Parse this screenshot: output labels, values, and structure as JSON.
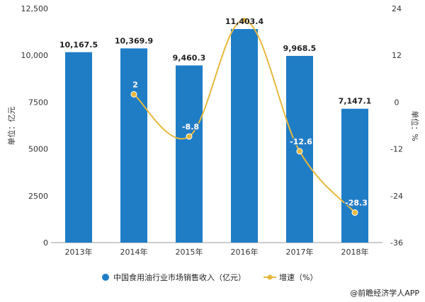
{
  "chart_data": {
    "type": "bar",
    "categories": [
      "2013年",
      "2014年",
      "2015年",
      "2016年",
      "2017年",
      "2018年"
    ],
    "series": [
      {
        "name": "中国食用油行业市场销售收入（亿元）",
        "type": "bar",
        "axis": "left",
        "values": [
          10167.5,
          10369.9,
          9460.3,
          11403.4,
          9968.5,
          7147.1
        ],
        "labels": [
          "10,167.5",
          "10,369.9",
          "9,460.3",
          "11,403.4",
          "9,968.5",
          "7,147.1"
        ],
        "color": "#1f7dc6"
      },
      {
        "name": "增速（%）",
        "type": "line",
        "axis": "right",
        "values": [
          null,
          2,
          -8.8,
          21,
          -12.6,
          -28.3
        ],
        "labels": [
          "",
          "2",
          "-8.8",
          "",
          "-12.6",
          "-28.3"
        ],
        "color": "#e6b83c"
      }
    ],
    "ylabel": "单位：亿元",
    "y2label": "单位：%",
    "ylim": [
      0,
      12500
    ],
    "y2lim": [
      -36,
      24
    ],
    "yticks": [
      "12,500",
      "10,000",
      "7500",
      "5000",
      "2500",
      "0"
    ],
    "y2ticks": [
      "24",
      "12",
      "0",
      "-12",
      "-24",
      "-36"
    ],
    "legend_position": "bottom",
    "grid": false
  },
  "source": "@前瞻经济学人APP"
}
